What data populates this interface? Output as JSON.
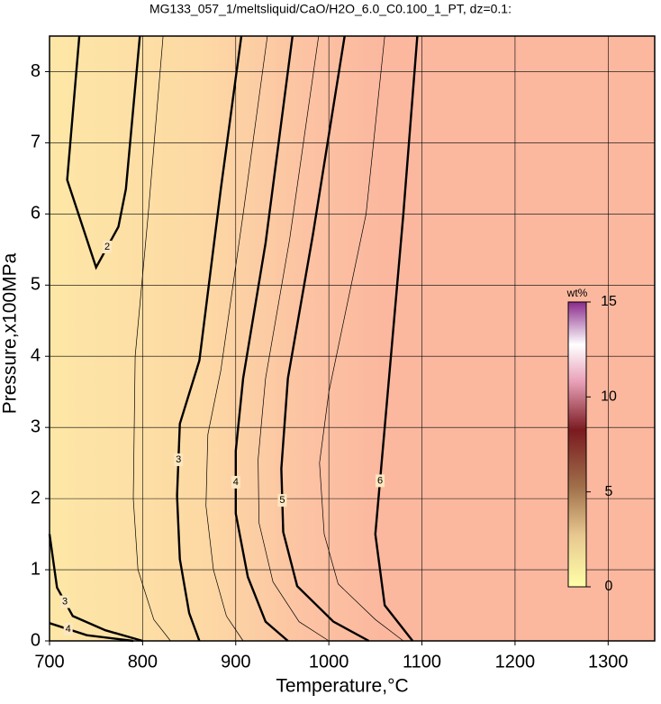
{
  "chart_data": {
    "type": "contour",
    "title": "MG133_057_1/meltsliquid/CaO/H2O_6.0_C0.100_1_PT, dz=0.1:",
    "x_label": "Temperature,°C",
    "y_label": "Pressure,x100MPa",
    "xlim": [
      700,
      1350
    ],
    "ylim": [
      0,
      8.5
    ],
    "xticks": [
      700,
      800,
      900,
      1000,
      1100,
      1200,
      1300
    ],
    "yticks": [
      0,
      1,
      2,
      3,
      4,
      5,
      6,
      7,
      8
    ],
    "grid": true,
    "contours": [
      {
        "level": 2,
        "x": [
          732,
          719,
          750,
          774,
          782,
          797
        ],
        "y": [
          8.5,
          6.48,
          5.25,
          5.82,
          6.35,
          8.5
        ]
      },
      {
        "level": 2.5,
        "x": [
          822,
          806,
          792,
          790,
          795,
          812,
          830
        ],
        "y": [
          8.5,
          6,
          4,
          2,
          1,
          0.3,
          0
        ]
      },
      {
        "level": 3,
        "x": [
          906,
          884,
          861,
          840,
          837,
          840,
          850,
          861
        ],
        "y": [
          8.5,
          6.35,
          3.94,
          3.05,
          2.04,
          1.15,
          0.39,
          0
        ]
      },
      {
        "level": 3,
        "x": [
          700,
          708,
          725,
          760,
          800
        ],
        "y": [
          1.5,
          0.75,
          0.35,
          0.15,
          0
        ]
      },
      {
        "level": 4,
        "x": [
          700,
          740,
          790
        ],
        "y": [
          0.25,
          0.08,
          0
        ]
      },
      {
        "level": 3.5,
        "x": [
          934,
          908,
          884,
          870,
          868,
          876,
          890,
          908
        ],
        "y": [
          8.5,
          6,
          3.8,
          2.9,
          1.9,
          1,
          0.35,
          0
        ]
      },
      {
        "level": 4,
        "x": [
          961,
          932,
          908,
          900,
          900,
          913,
          932,
          956
        ],
        "y": [
          8.5,
          5.59,
          3.69,
          2.67,
          1.79,
          0.9,
          0.27,
          0
        ]
      },
      {
        "level": 4.5,
        "x": [
          989,
          958,
          932,
          924,
          925,
          940,
          968,
          1000
        ],
        "y": [
          8.5,
          5.65,
          3.69,
          2.55,
          1.66,
          0.83,
          0.27,
          0
        ]
      },
      {
        "level": 5,
        "x": [
          1017,
          983,
          956,
          949,
          951,
          966,
          1005,
          1043
        ],
        "y": [
          8.5,
          5.72,
          3.69,
          2.42,
          1.53,
          0.77,
          0.27,
          0
        ]
      },
      {
        "level": 5.5,
        "x": [
          1060,
          1040,
          1000,
          990,
          995,
          1010,
          1050,
          1080
        ],
        "y": [
          8.5,
          6,
          3.5,
          2.5,
          1.5,
          0.8,
          0.3,
          0
        ]
      },
      {
        "level": 6,
        "x": [
          1095,
          1080,
          1060,
          1050,
          1060,
          1090
        ],
        "y": [
          8.5,
          6,
          3,
          1.5,
          0.5,
          0
        ]
      }
    ],
    "colorbar": {
      "label": "wt%",
      "lim": [
        0,
        15
      ],
      "ticks": [
        0,
        5,
        10,
        15
      ]
    }
  }
}
